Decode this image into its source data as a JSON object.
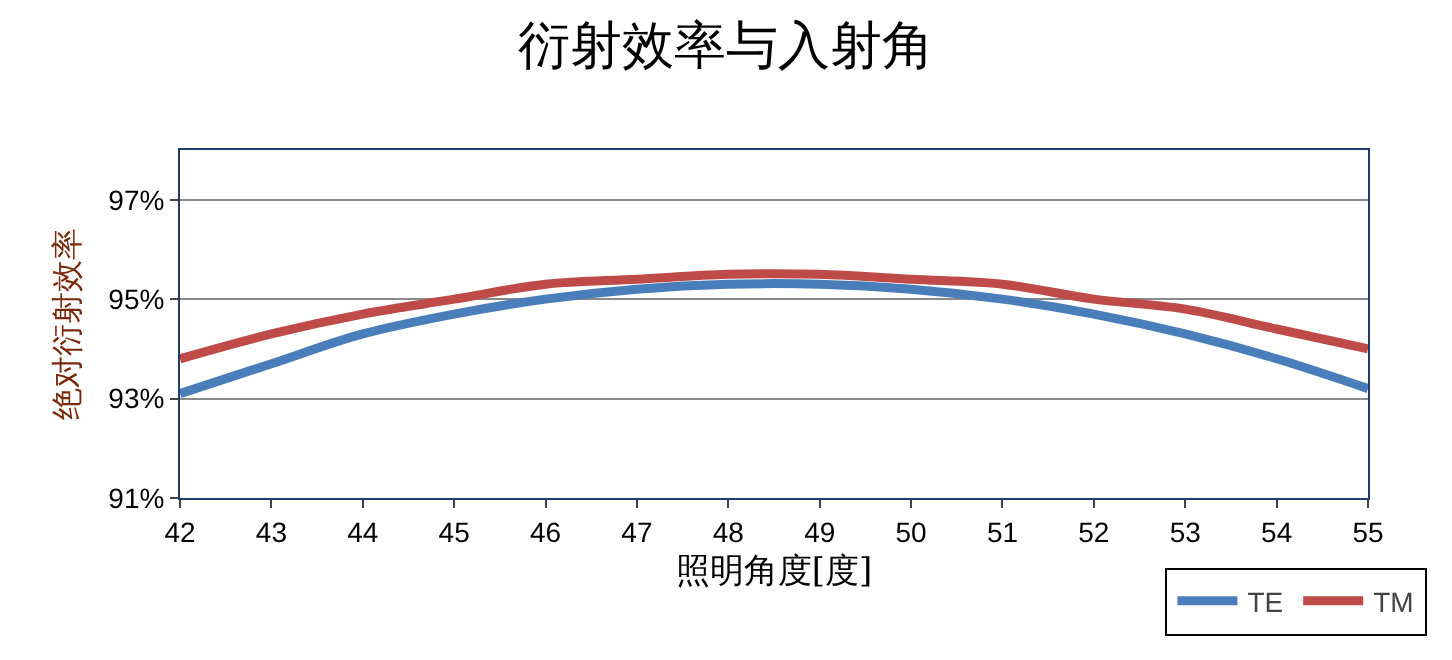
{
  "chart_data": {
    "type": "line",
    "title": "衍射效率与入射角",
    "xlabel": "照明角度[度]",
    "ylabel": "绝对衍射效率",
    "x": [
      42,
      43,
      44,
      45,
      46,
      47,
      48,
      49,
      50,
      51,
      52,
      53,
      54,
      55
    ],
    "series": [
      {
        "name": "TE",
        "color": "#4a7ebb",
        "values": [
          93.1,
          93.7,
          94.3,
          94.7,
          95.0,
          95.2,
          95.3,
          95.3,
          95.2,
          95.0,
          94.7,
          94.3,
          93.8,
          93.2
        ]
      },
      {
        "name": "TM",
        "color": "#be4b48",
        "values": [
          93.8,
          94.3,
          94.7,
          95.0,
          95.3,
          95.4,
          95.5,
          95.5,
          95.4,
          95.3,
          95.0,
          94.8,
          94.4,
          94.0
        ]
      }
    ],
    "xlim": [
      42,
      55
    ],
    "xticks": [
      42,
      43,
      44,
      45,
      46,
      47,
      48,
      49,
      50,
      51,
      52,
      53,
      54,
      55
    ],
    "ylim": [
      91,
      98
    ],
    "yticks": [
      {
        "value": 91,
        "label": "91%"
      },
      {
        "value": 93,
        "label": "93%"
      },
      {
        "value": 95,
        "label": "95%"
      },
      {
        "value": 97,
        "label": "97%"
      }
    ],
    "grid": "y",
    "legend": "bottom right",
    "marker": "none",
    "line_style": "solid"
  }
}
